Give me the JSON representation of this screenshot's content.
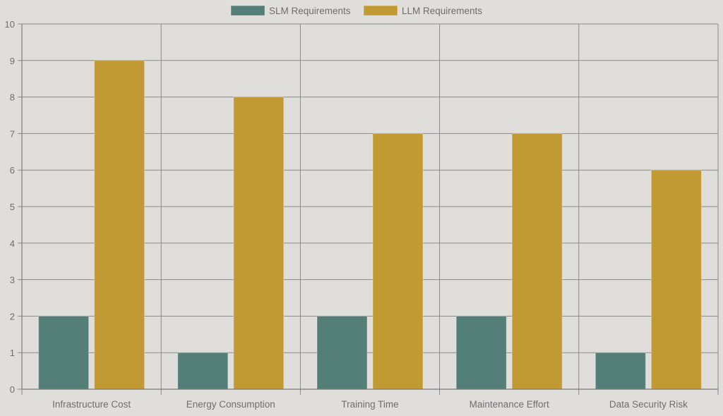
{
  "chart_data": {
    "type": "bar",
    "categories": [
      "Infrastructure Cost",
      "Energy Consumption",
      "Training Time",
      "Maintenance Effort",
      "Data Security Risk"
    ],
    "series": [
      {
        "name": "SLM Requirements",
        "values": [
          2,
          1,
          2,
          2,
          1
        ],
        "color": "#537f78"
      },
      {
        "name": "LLM Requirements",
        "values": [
          9,
          8,
          7,
          7,
          6
        ],
        "color": "#c29a34"
      }
    ],
    "ylim": [
      0,
      10
    ],
    "yticks": [
      0,
      1,
      2,
      3,
      4,
      5,
      6,
      7,
      8,
      9,
      10
    ],
    "grid": true,
    "legend": "top-center"
  },
  "colors": {
    "background": "#e0dedb",
    "grid": "#8a8a8a",
    "axis": "#7a7a7a",
    "text": "#6e6e6e"
  }
}
